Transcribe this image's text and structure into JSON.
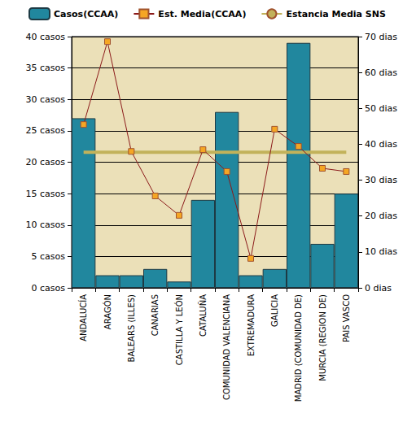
{
  "chart_data": {
    "type": "bar",
    "categories": [
      "ANDALUCÍA",
      "ARAGÓN",
      "BALEARS (ILLES)",
      "CANARIAS",
      "CASTILLA Y LEÓN",
      "CATALUÑA",
      "COMUNIDAD VALENCIANA",
      "EXTREMADURA",
      "GALICIA",
      "MADRID (COMUNIDAD DE)",
      "MURCIA (REGION DE)",
      "PAIS VASCO"
    ],
    "series": [
      {
        "name": "Casos(CCAA)",
        "type": "bar",
        "color": "#21879e",
        "values": [
          27,
          2,
          2,
          3,
          1,
          14,
          28,
          2,
          3,
          39,
          7,
          15
        ]
      },
      {
        "name": "Est. Media(CCAA)",
        "type": "line",
        "axis": "y2",
        "color": "#8b1a1a",
        "marker": "square",
        "line_style": "solid",
        "values": [
          45.5,
          68.6,
          38.0,
          25.6,
          20.2,
          38.5,
          32.4,
          8.2,
          44.2,
          39.4,
          33.3,
          32.4
        ]
      },
      {
        "name": "Estancia Media SNS",
        "type": "line",
        "axis": "y2",
        "color": "#c2b25a",
        "marker": "none",
        "line_style": "solid",
        "values": [
          37.8,
          37.8,
          37.8,
          37.8,
          37.8,
          37.8,
          37.8,
          37.8,
          37.8,
          37.8,
          37.8,
          37.8
        ]
      }
    ],
    "ylim": [
      0,
      40
    ],
    "yticks": [
      {
        "value": 0,
        "label": "0 casos"
      },
      {
        "value": 5,
        "label": "5 casos"
      },
      {
        "value": 10,
        "label": "10 casos"
      },
      {
        "value": 15,
        "label": "15 casos"
      },
      {
        "value": 20,
        "label": "20 casos"
      },
      {
        "value": 25,
        "label": "25 casos"
      },
      {
        "value": 30,
        "label": "30 casos"
      },
      {
        "value": 35,
        "label": "35 casos"
      },
      {
        "value": 40,
        "label": "40 casos"
      }
    ],
    "y2lim": [
      0,
      70
    ],
    "y2ticks": [
      {
        "value": 0,
        "label": "0 dias"
      },
      {
        "value": 10,
        "label": "10 dias"
      },
      {
        "value": 20,
        "label": "20 dias"
      },
      {
        "value": 30,
        "label": "30 dias"
      },
      {
        "value": 40,
        "label": "40 dias"
      },
      {
        "value": 50,
        "label": "50 dias"
      },
      {
        "value": 60,
        "label": "60 dias"
      },
      {
        "value": 70,
        "label": "70 dias"
      }
    ],
    "grid": true,
    "legend": "top"
  }
}
